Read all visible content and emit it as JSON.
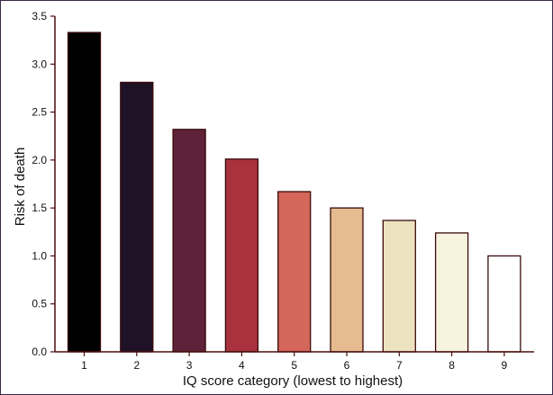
{
  "chart_data": {
    "type": "bar",
    "title": "",
    "xlabel": "IQ score category (lowest to highest)",
    "ylabel": "Risk of death",
    "categories": [
      "1",
      "2",
      "3",
      "4",
      "5",
      "6",
      "7",
      "8",
      "9"
    ],
    "values": [
      3.33,
      2.81,
      2.32,
      2.01,
      1.67,
      1.5,
      1.37,
      1.24,
      1.0
    ],
    "ylim": [
      0,
      3.5
    ],
    "yticks": [
      "0.0",
      "0.5",
      "1.0",
      "1.5",
      "2.0",
      "2.5",
      "3.0",
      "3.5"
    ],
    "bar_colors": [
      "#000000",
      "#1f1226",
      "#5e2238",
      "#a8323e",
      "#d4675a",
      "#e6bb90",
      "#ede2c0",
      "#f6f3df",
      "#ffffff"
    ],
    "axis_color": "#4a0f0f",
    "bar_edge_color": "#3a0a0a",
    "grid": false,
    "legend": "none"
  }
}
